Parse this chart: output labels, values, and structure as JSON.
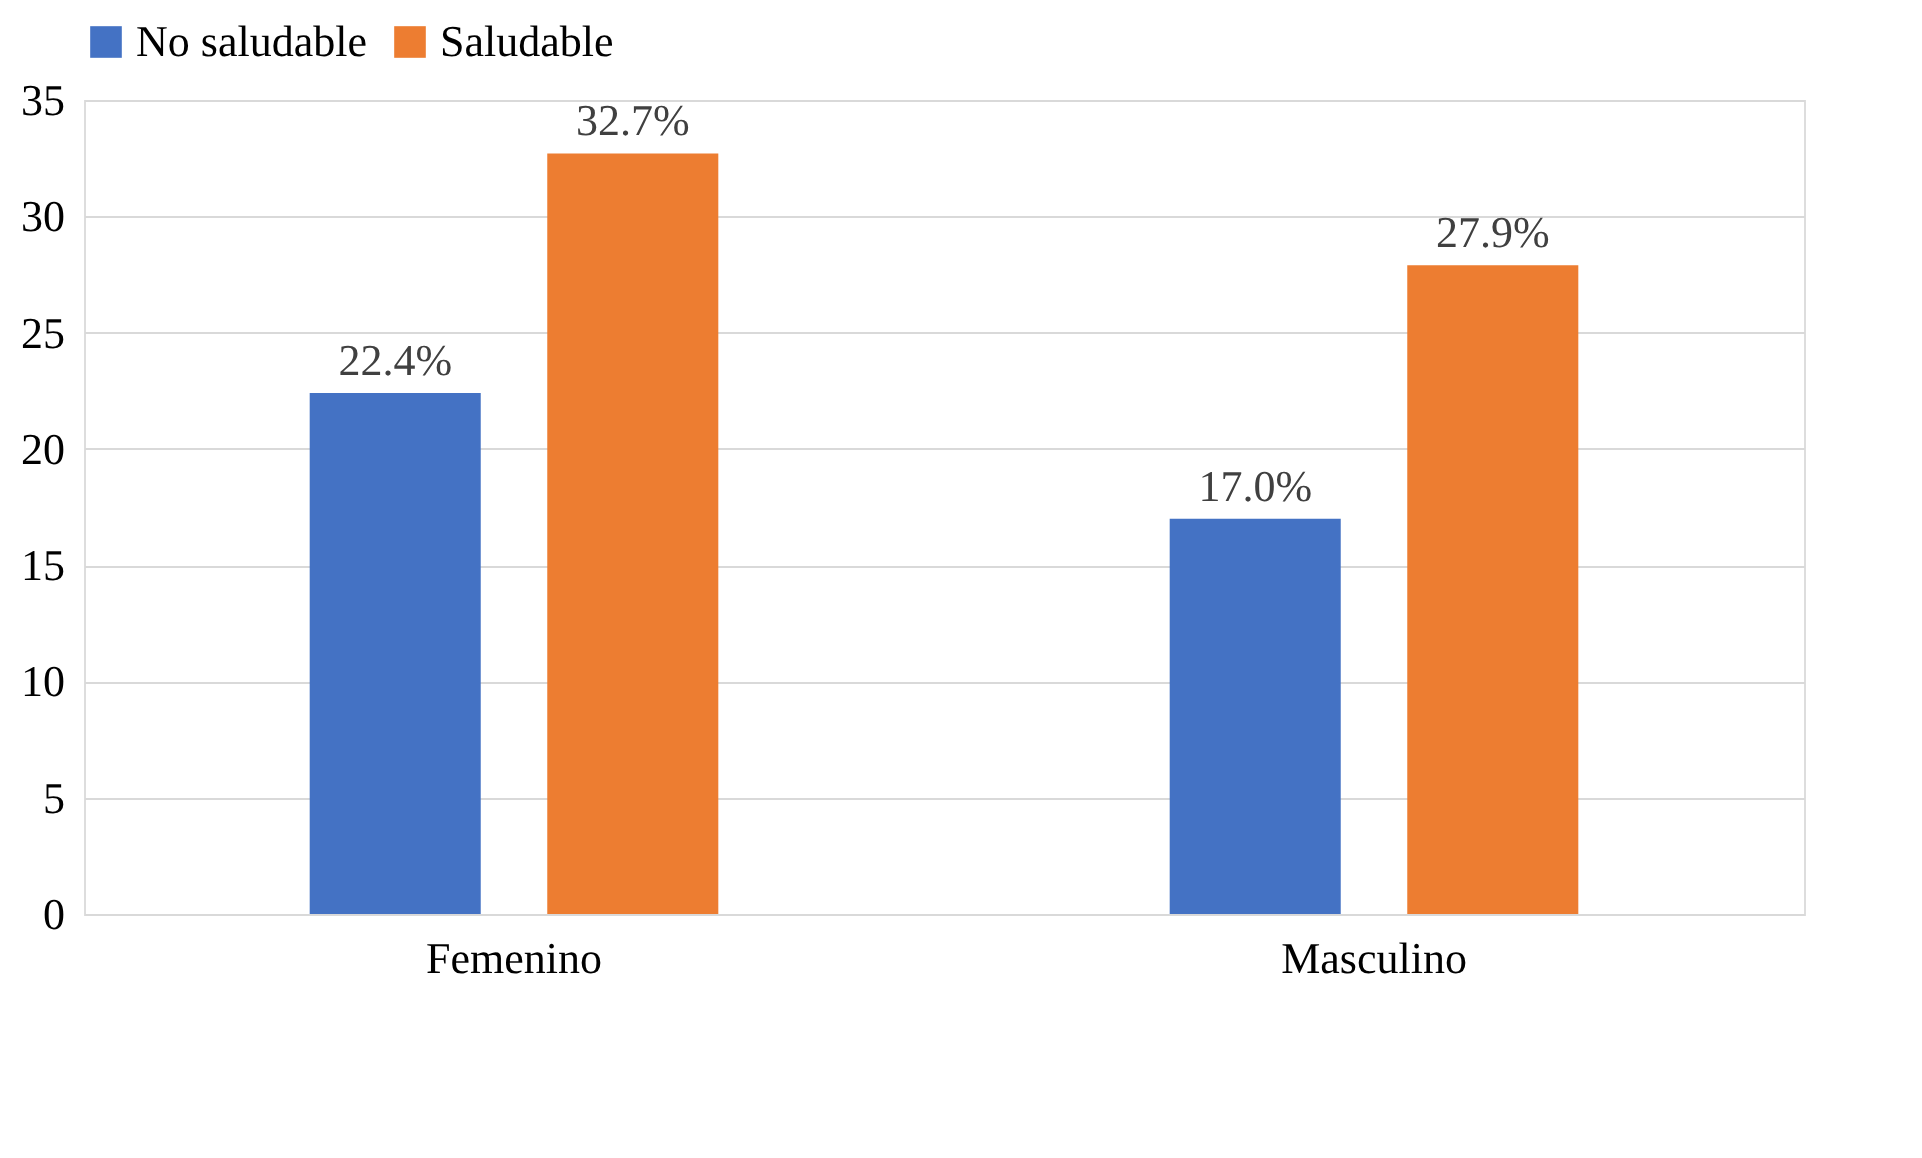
{
  "chart_data": {
    "type": "bar",
    "categories": [
      "Femenino",
      "Masculino"
    ],
    "series": [
      {
        "name": "No saludable",
        "color": "#4472c4",
        "values": [
          22.4,
          17.0
        ],
        "value_labels": [
          "22.4%",
          "17.0%"
        ]
      },
      {
        "name": "Saludable",
        "color": "#ed7d31",
        "values": [
          32.7,
          27.9
        ],
        "value_labels": [
          "32.7%",
          "27.9%"
        ]
      }
    ],
    "ylim": [
      0,
      35
    ],
    "yticks": [
      0,
      5,
      10,
      15,
      20,
      25,
      30,
      35
    ],
    "grid": "y",
    "legend": "top"
  }
}
